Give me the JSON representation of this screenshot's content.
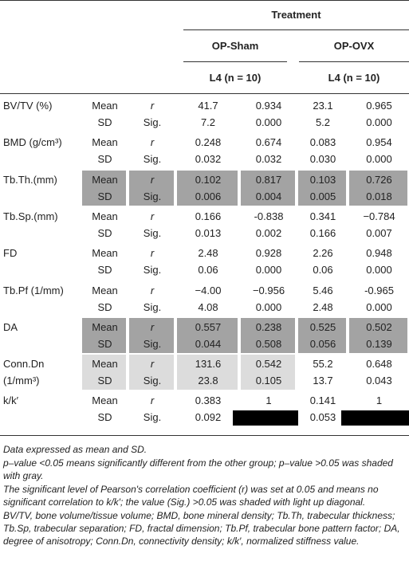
{
  "header": {
    "group_title": "Treatment",
    "groups": [
      "OP-Sham",
      "OP-OVX"
    ],
    "subheads": [
      "L4 (n = 10)",
      "L4 (n = 10)"
    ]
  },
  "table": {
    "rows": [
      {
        "label": "BV/TV (%)",
        "shade": "none",
        "lines": [
          [
            "Mean",
            "r",
            "41.7",
            "0.934",
            "23.1",
            "0.965"
          ],
          [
            "SD",
            "Sig.",
            "7.2",
            "0.000",
            "5.2",
            "0.000"
          ]
        ]
      },
      {
        "label": "BMD (g/cm³)",
        "shade": "none",
        "lines": [
          [
            "Mean",
            "r",
            "0.248",
            "0.674",
            "0.083",
            "0.954"
          ],
          [
            "SD",
            "Sig.",
            "0.032",
            "0.032",
            "0.030",
            "0.000"
          ]
        ]
      },
      {
        "label": "Tb.Th.(mm)",
        "shade": "dark",
        "lines": [
          [
            "Mean",
            "r",
            "0.102",
            "0.817",
            "0.103",
            "0.726"
          ],
          [
            "SD",
            "Sig.",
            "0.006",
            "0.004",
            "0.005",
            "0.018"
          ]
        ]
      },
      {
        "label": "Tb.Sp.(mm)",
        "shade": "none",
        "lines": [
          [
            "Mean",
            "r",
            "0.166",
            "-0.838",
            "0.341",
            "−0.784"
          ],
          [
            "SD",
            "Sig.",
            "0.013",
            "0.002",
            "0.166",
            "0.007"
          ]
        ]
      },
      {
        "label": "FD",
        "shade": "none",
        "lines": [
          [
            "Mean",
            "r",
            "2.48",
            "0.928",
            "2.26",
            "0.948"
          ],
          [
            "SD",
            "Sig.",
            "0.06",
            "0.000",
            "0.06",
            "0.000"
          ]
        ]
      },
      {
        "label": "Tb.Pf (1/mm)",
        "shade": "none",
        "lines": [
          [
            "Mean",
            "r",
            "−4.00",
            "−0.956",
            "5.46",
            "-0.965"
          ],
          [
            "SD",
            "Sig.",
            "4.08",
            "0.000",
            "2.48",
            "0.000"
          ]
        ]
      },
      {
        "label": "DA",
        "shade": "dark",
        "lines": [
          [
            "Mean",
            "r",
            "0.557",
            "0.238",
            "0.525",
            "0.502"
          ],
          [
            "SD",
            "Sig.",
            "0.044",
            "0.508",
            "0.056",
            "0.139"
          ]
        ]
      },
      {
        "label": "Conn.Dn (1/mm³)",
        "shade": "light",
        "lines": [
          [
            "Mean",
            "r",
            "131.6",
            "0.542",
            "55.2",
            "0.648"
          ],
          [
            "SD",
            "Sig.",
            "23.8",
            "0.105",
            "13.7",
            "0.043"
          ]
        ]
      },
      {
        "label": "k/k′",
        "shade": "none",
        "lines": [
          [
            "Mean",
            "r",
            "0.383",
            "1",
            "0.141",
            "1"
          ],
          [
            "SD",
            "Sig.",
            "0.092",
            null,
            "0.053",
            null
          ]
        ]
      }
    ]
  },
  "notes": [
    "Data expressed as mean and SD.",
    "p–value <0.05 means significantly different from the other group; p–value >0.05 was shaded with gray.",
    "The significant level of Pearson's correlation coefficient (r) was set at 0.05 and means no significant correlation to k/k′; the value (Sig.) >0.05 was shaded with light up diagonal.",
    "BV/TV, bone volume/tissue volume; BMD, bone mineral density; Tb.Th, trabecular thickness; Tb.Sp, trabecular separation; FD, fractal dimension; Tb.Pf, trabecular bone pattern factor; DA, degree of anisotropy; Conn.Dn, connectivity density; k/k′, normalized stiffness value."
  ]
}
